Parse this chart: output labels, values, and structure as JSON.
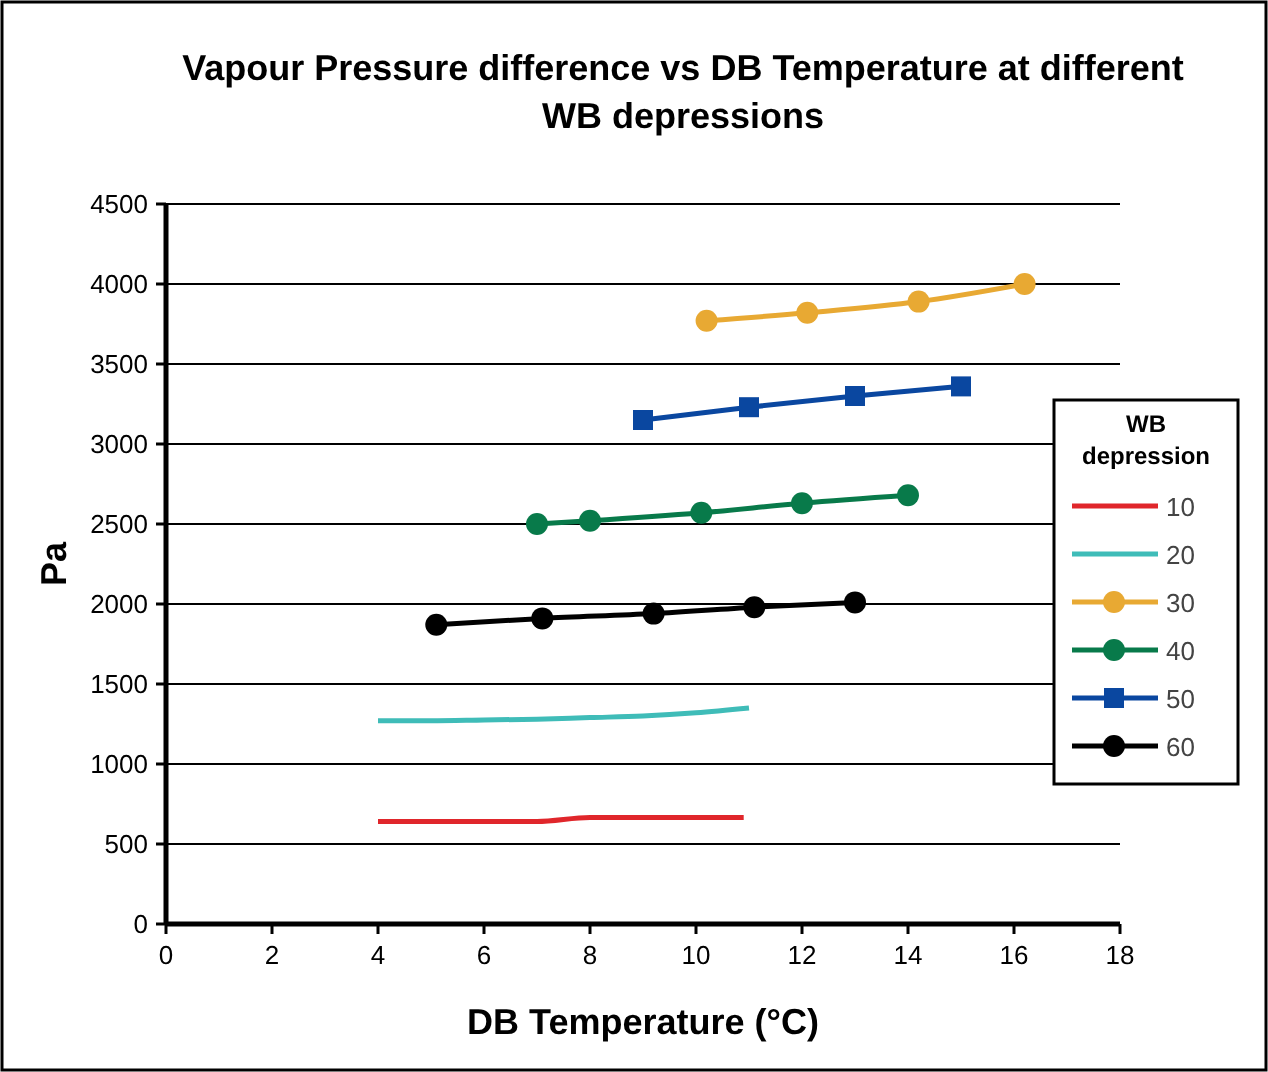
{
  "chart_data": {
    "type": "line",
    "title": "Vapour Pressure difference vs DB Temperature at different  WB depressions",
    "xlabel": "DB Temperature (°C)",
    "ylabel": "Pa",
    "legend_title": "WB depression",
    "legend": "right",
    "grid": "y",
    "line_style": "solid",
    "xlim": [
      0,
      18
    ],
    "xticks": [
      0,
      2,
      4,
      6,
      8,
      10,
      12,
      14,
      16,
      18
    ],
    "ylim": [
      0,
      4500
    ],
    "yticks": [
      0,
      500,
      1000,
      1500,
      2000,
      2500,
      3000,
      3500,
      4000,
      4500
    ],
    "series": [
      {
        "name": "10",
        "color": "#e0262b",
        "marker": "none",
        "x": [
          4,
          5,
          6,
          7,
          8,
          9,
          10,
          10.9
        ],
        "values": [
          640,
          640,
          640,
          640,
          665,
          665,
          665,
          665
        ]
      },
      {
        "name": "20",
        "color": "#3fbcb8",
        "marker": "none",
        "x": [
          4,
          5,
          6,
          7,
          8,
          9,
          10,
          11
        ],
        "values": [
          1270,
          1270,
          1275,
          1280,
          1290,
          1300,
          1320,
          1350
        ]
      },
      {
        "name": "30",
        "color": "#e8a933",
        "marker": "circle",
        "x": [
          10.2,
          12.1,
          14.2,
          16.2
        ],
        "values": [
          3770,
          3820,
          3890,
          4000
        ]
      },
      {
        "name": "40",
        "color": "#087a4a",
        "marker": "circle",
        "x": [
          7,
          8,
          10.1,
          12,
          14
        ],
        "values": [
          2500,
          2520,
          2570,
          2630,
          2680
        ]
      },
      {
        "name": "50",
        "color": "#0a47a0",
        "marker": "square",
        "x": [
          9,
          11,
          13,
          15
        ],
        "values": [
          3150,
          3230,
          3300,
          3360
        ]
      },
      {
        "name": "60",
        "color": "#000000",
        "marker": "circle",
        "x": [
          5.1,
          7.1,
          9.2,
          11.1,
          13
        ],
        "values": [
          1870,
          1910,
          1940,
          1980,
          2010
        ]
      }
    ]
  }
}
